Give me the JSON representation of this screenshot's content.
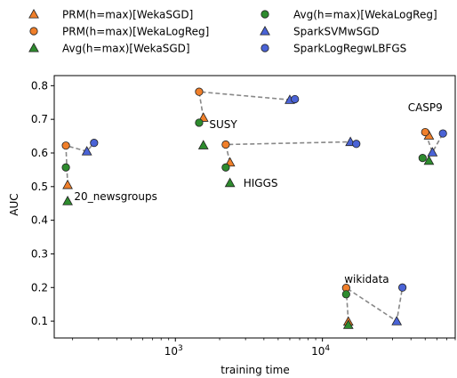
{
  "chart_data": {
    "type": "scatter",
    "xlabel": "training time",
    "ylabel": "AUC",
    "xscale": "log",
    "xlim": [
      150,
      80000
    ],
    "ylim": [
      0.05,
      0.83
    ],
    "x_ticks": [
      {
        "value": 1000,
        "base": "10",
        "exp": "3"
      },
      {
        "value": 10000,
        "base": "10",
        "exp": "4"
      }
    ],
    "y_ticks": [
      0.1,
      0.2,
      0.3,
      0.4,
      0.5,
      0.6,
      0.7,
      0.8
    ],
    "grid": false,
    "legend_position": "top",
    "series": [
      {
        "name": "PRM(h=max)[WekaSGD]",
        "marker": "triangle",
        "color": "#f07f2a",
        "points": [
          [
            185,
            0.505
          ],
          [
            1550,
            0.705
          ],
          [
            2350,
            0.572
          ],
          [
            15000,
            0.099
          ],
          [
            53000,
            0.652
          ]
        ]
      },
      {
        "name": "PRM(h=max)[WekaLogReg]",
        "marker": "circle",
        "color": "#f07f2a",
        "points": [
          [
            180,
            0.622
          ],
          [
            1450,
            0.782
          ],
          [
            2200,
            0.625
          ],
          [
            14500,
            0.199
          ],
          [
            50000,
            0.662
          ]
        ]
      },
      {
        "name": "Avg(h=max)[WekaSGD]",
        "marker": "triangle",
        "color": "#2e8b2e",
        "points": [
          [
            185,
            0.457
          ],
          [
            1550,
            0.623
          ],
          [
            2350,
            0.511
          ],
          [
            15000,
            0.089
          ],
          [
            53000,
            0.577
          ]
        ]
      },
      {
        "name": "Avg(h=max)[WekaLogReg]",
        "marker": "circle",
        "color": "#2e8b2e",
        "points": [
          [
            180,
            0.557
          ],
          [
            1450,
            0.69
          ],
          [
            2200,
            0.557
          ],
          [
            14500,
            0.18
          ],
          [
            48000,
            0.585
          ]
        ]
      },
      {
        "name": "SparkSVMwSGD",
        "marker": "triangle",
        "color": "#4a63d6",
        "points": [
          [
            250,
            0.605
          ],
          [
            6000,
            0.758
          ],
          [
            15500,
            0.633
          ],
          [
            32000,
            0.1
          ],
          [
            56000,
            0.602
          ]
        ]
      },
      {
        "name": "SparkLogRegwLBFGS",
        "marker": "circle",
        "color": "#4a63d6",
        "points": [
          [
            280,
            0.63
          ],
          [
            6500,
            0.76
          ],
          [
            17000,
            0.627
          ],
          [
            35000,
            0.2
          ],
          [
            66000,
            0.658
          ]
        ]
      }
    ],
    "groups": [
      {
        "label": "20_newsgroups",
        "label_x": 205,
        "label_y": 0.47,
        "anchor": "start",
        "connect": [
          [
            0,
            0
          ],
          [
            1,
            0
          ],
          [
            4,
            0
          ],
          [
            5,
            0
          ]
        ]
      },
      {
        "label": "SUSY",
        "label_x": 1700,
        "label_y": 0.685,
        "anchor": "start",
        "connect": [
          [
            0,
            1
          ],
          [
            1,
            1
          ],
          [
            4,
            1
          ],
          [
            5,
            1
          ]
        ]
      },
      {
        "label": "HIGGS",
        "label_x": 2900,
        "label_y": 0.51,
        "anchor": "start",
        "connect": [
          [
            0,
            2
          ],
          [
            1,
            2
          ],
          [
            4,
            2
          ],
          [
            5,
            2
          ]
        ]
      },
      {
        "label": "wikidata",
        "label_x": 20000,
        "label_y": 0.225,
        "anchor": "middle",
        "connect": [
          [
            0,
            3
          ],
          [
            1,
            3
          ],
          [
            4,
            3
          ],
          [
            5,
            3
          ]
        ]
      },
      {
        "label": "CASP9",
        "label_x": 50000,
        "label_y": 0.735,
        "anchor": "middle",
        "connect": [
          [
            0,
            4
          ],
          [
            1,
            4
          ],
          [
            4,
            4
          ],
          [
            5,
            4
          ]
        ]
      }
    ]
  }
}
